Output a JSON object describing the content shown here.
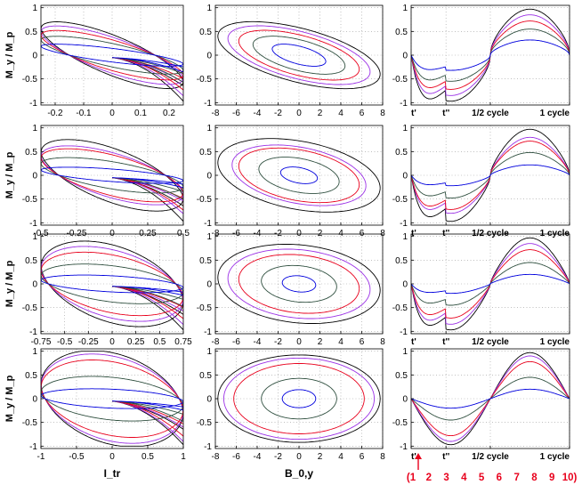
{
  "figure": {
    "ylabel": "M_y / M_p",
    "col_xlabels": [
      "I_tr",
      "B_0,y",
      ""
    ],
    "series_colors": {
      "black": "#000000",
      "red": "#e8001c",
      "purple": "#9b30e6",
      "darkgreen": "#2f4f3f",
      "blue": "#0000dd"
    },
    "cycle_labels": [
      "t'",
      "t''",
      "1/2 cycle",
      "1 cycle"
    ],
    "numbers_row": [
      "(1",
      "2",
      "3",
      "4",
      "5",
      "6",
      "7",
      "8",
      "9",
      "10)"
    ],
    "accent_color": "#e8001c"
  },
  "chart_data": [
    {
      "type": "line",
      "row": 1,
      "col": 1,
      "xlim": [
        -0.25,
        0.25
      ],
      "ylim": [
        -1.05,
        1.05
      ],
      "xticks": [
        "-0.2",
        "-0.1",
        "0",
        "0.1",
        "0.2"
      ],
      "yticks": [
        "-1",
        "-0.5",
        "0",
        "0.5",
        "1"
      ],
      "series": [
        {
          "name": "black",
          "amplitude": 0.97
        },
        {
          "name": "purple",
          "amplitude": 0.85
        },
        {
          "name": "red",
          "amplitude": 0.72
        },
        {
          "name": "darkgreen",
          "amplitude": 0.55
        },
        {
          "name": "blue",
          "amplitude": 0.32
        }
      ]
    },
    {
      "type": "line",
      "row": 1,
      "col": 2,
      "xlim": [
        -8,
        8
      ],
      "ylim": [
        -1.05,
        1.05
      ],
      "xticks": [
        "-8",
        "-6",
        "-4",
        "-2",
        "0",
        "2",
        "4",
        "6",
        "8"
      ],
      "yticks": [
        "-1",
        "-0.5",
        "0",
        "0.5",
        "1"
      ],
      "series": [
        {
          "name": "black",
          "amplitude": 0.97
        },
        {
          "name": "purple",
          "amplitude": 0.85
        },
        {
          "name": "red",
          "amplitude": 0.72
        },
        {
          "name": "darkgreen",
          "amplitude": 0.55
        },
        {
          "name": "blue",
          "amplitude": 0.32
        }
      ]
    },
    {
      "type": "line",
      "row": 1,
      "col": 3,
      "xlim": [
        0,
        1
      ],
      "ylim": [
        -1.05,
        1.05
      ],
      "xticks": [
        "t'",
        "t''",
        "1/2 cycle",
        "1 cycle"
      ],
      "yticks": [
        "-1",
        "-0.5",
        "0",
        "0.5",
        "1"
      ],
      "series": [
        {
          "name": "black",
          "amplitude": 0.97
        },
        {
          "name": "purple",
          "amplitude": 0.85
        },
        {
          "name": "red",
          "amplitude": 0.72
        },
        {
          "name": "darkgreen",
          "amplitude": 0.55
        },
        {
          "name": "blue",
          "amplitude": 0.32
        }
      ]
    },
    {
      "type": "line",
      "row": 2,
      "col": 1,
      "xlim": [
        -0.5,
        0.5
      ],
      "ylim": [
        -1.05,
        1.05
      ],
      "xticks": [
        "-0.5",
        "-0.25",
        "0",
        "0.25",
        "0.5"
      ],
      "yticks": [
        "-1",
        "-0.5",
        "0",
        "0.5",
        "1"
      ],
      "series": [
        {
          "name": "black",
          "amplitude": 0.97
        },
        {
          "name": "purple",
          "amplitude": 0.8
        },
        {
          "name": "red",
          "amplitude": 0.72
        },
        {
          "name": "darkgreen",
          "amplitude": 0.48
        },
        {
          "name": "blue",
          "amplitude": 0.22
        }
      ]
    },
    {
      "type": "line",
      "row": 2,
      "col": 2,
      "xlim": [
        -8,
        8
      ],
      "ylim": [
        -1.05,
        1.05
      ],
      "xticks": [
        "-8",
        "-6",
        "-4",
        "-2",
        "0",
        "2",
        "4",
        "6",
        "8"
      ],
      "yticks": [
        "-1",
        "-0.5",
        "0",
        "0.5",
        "1"
      ],
      "series": [
        {
          "name": "black",
          "amplitude": 0.97
        },
        {
          "name": "purple",
          "amplitude": 0.8
        },
        {
          "name": "red",
          "amplitude": 0.72
        },
        {
          "name": "darkgreen",
          "amplitude": 0.48
        },
        {
          "name": "blue",
          "amplitude": 0.22
        }
      ]
    },
    {
      "type": "line",
      "row": 2,
      "col": 3,
      "xlim": [
        0,
        1
      ],
      "ylim": [
        -1.05,
        1.05
      ],
      "xticks": [
        "t'",
        "t''",
        "1/2 cycle",
        "1 cycle"
      ],
      "yticks": [
        "-1",
        "-0.5",
        "0",
        "0.5",
        "1"
      ],
      "series": [
        {
          "name": "black",
          "amplitude": 0.97
        },
        {
          "name": "purple",
          "amplitude": 0.8
        },
        {
          "name": "red",
          "amplitude": 0.72
        },
        {
          "name": "darkgreen",
          "amplitude": 0.48
        },
        {
          "name": "blue",
          "amplitude": 0.22
        }
      ]
    },
    {
      "type": "line",
      "row": 3,
      "col": 1,
      "xlim": [
        -0.75,
        0.75
      ],
      "ylim": [
        -1.05,
        1.05
      ],
      "xticks": [
        "-0.75",
        "-0.5",
        "-0.25",
        "0",
        "0.25",
        "0.5",
        "0.75"
      ],
      "yticks": [
        "-1",
        "-0.5",
        "0",
        "0.5",
        "1"
      ],
      "series": [
        {
          "name": "black",
          "amplitude": 0.97
        },
        {
          "name": "purple",
          "amplitude": 0.85
        },
        {
          "name": "red",
          "amplitude": 0.72
        },
        {
          "name": "darkgreen",
          "amplitude": 0.45
        },
        {
          "name": "blue",
          "amplitude": 0.2
        }
      ]
    },
    {
      "type": "line",
      "row": 3,
      "col": 2,
      "xlim": [
        -8,
        8
      ],
      "ylim": [
        -1.05,
        1.05
      ],
      "xticks": [
        "-8",
        "-6",
        "-4",
        "-2",
        "0",
        "2",
        "4",
        "6",
        "8"
      ],
      "yticks": [
        "-1",
        "-0.5",
        "0",
        "0.5",
        "1"
      ],
      "series": [
        {
          "name": "black",
          "amplitude": 0.97
        },
        {
          "name": "purple",
          "amplitude": 0.85
        },
        {
          "name": "red",
          "amplitude": 0.72
        },
        {
          "name": "darkgreen",
          "amplitude": 0.45
        },
        {
          "name": "blue",
          "amplitude": 0.2
        }
      ]
    },
    {
      "type": "line",
      "row": 3,
      "col": 3,
      "xlim": [
        0,
        1
      ],
      "ylim": [
        -1.05,
        1.05
      ],
      "xticks": [
        "t'",
        "t''",
        "1/2 cycle",
        "1 cycle"
      ],
      "yticks": [
        "-1",
        "-0.5",
        "0",
        "0.5",
        "1"
      ],
      "series": [
        {
          "name": "black",
          "amplitude": 0.97
        },
        {
          "name": "purple",
          "amplitude": 0.85
        },
        {
          "name": "red",
          "amplitude": 0.72
        },
        {
          "name": "darkgreen",
          "amplitude": 0.45
        },
        {
          "name": "blue",
          "amplitude": 0.2
        }
      ]
    },
    {
      "type": "line",
      "row": 4,
      "col": 1,
      "xlim": [
        -1,
        1
      ],
      "ylim": [
        -1.05,
        1.05
      ],
      "xticks": [
        "-1",
        "-0.5",
        "0",
        "0.5",
        "1"
      ],
      "yticks": [
        "-1",
        "-0.5",
        "0",
        "0.5",
        "1"
      ],
      "series": [
        {
          "name": "black",
          "amplitude": 0.97
        },
        {
          "name": "purple",
          "amplitude": 0.9
        },
        {
          "name": "red",
          "amplitude": 0.78
        },
        {
          "name": "darkgreen",
          "amplitude": 0.45
        },
        {
          "name": "blue",
          "amplitude": 0.2
        }
      ]
    },
    {
      "type": "line",
      "row": 4,
      "col": 2,
      "xlim": [
        -8,
        8
      ],
      "ylim": [
        -1.05,
        1.05
      ],
      "xticks": [
        "-8",
        "-6",
        "-4",
        "-2",
        "0",
        "2",
        "4",
        "6",
        "8"
      ],
      "yticks": [
        "-1",
        "-0.5",
        "0",
        "0.5",
        "1"
      ],
      "series": [
        {
          "name": "black",
          "amplitude": 0.97
        },
        {
          "name": "purple",
          "amplitude": 0.9
        },
        {
          "name": "red",
          "amplitude": 0.78
        },
        {
          "name": "darkgreen",
          "amplitude": 0.45
        },
        {
          "name": "blue",
          "amplitude": 0.2
        }
      ]
    },
    {
      "type": "line",
      "row": 4,
      "col": 3,
      "xlim": [
        0,
        1
      ],
      "ylim": [
        -1.05,
        1.05
      ],
      "xticks": [
        "t'",
        "t''",
        "1/2 cycle",
        "1 cycle"
      ],
      "yticks": [
        "-1",
        "-0.5",
        "0",
        "0.5",
        "1"
      ],
      "series": [
        {
          "name": "black",
          "amplitude": 0.97
        },
        {
          "name": "purple",
          "amplitude": 0.9
        },
        {
          "name": "red",
          "amplitude": 0.78
        },
        {
          "name": "darkgreen",
          "amplitude": 0.45
        },
        {
          "name": "blue",
          "amplitude": 0.2
        }
      ]
    }
  ]
}
